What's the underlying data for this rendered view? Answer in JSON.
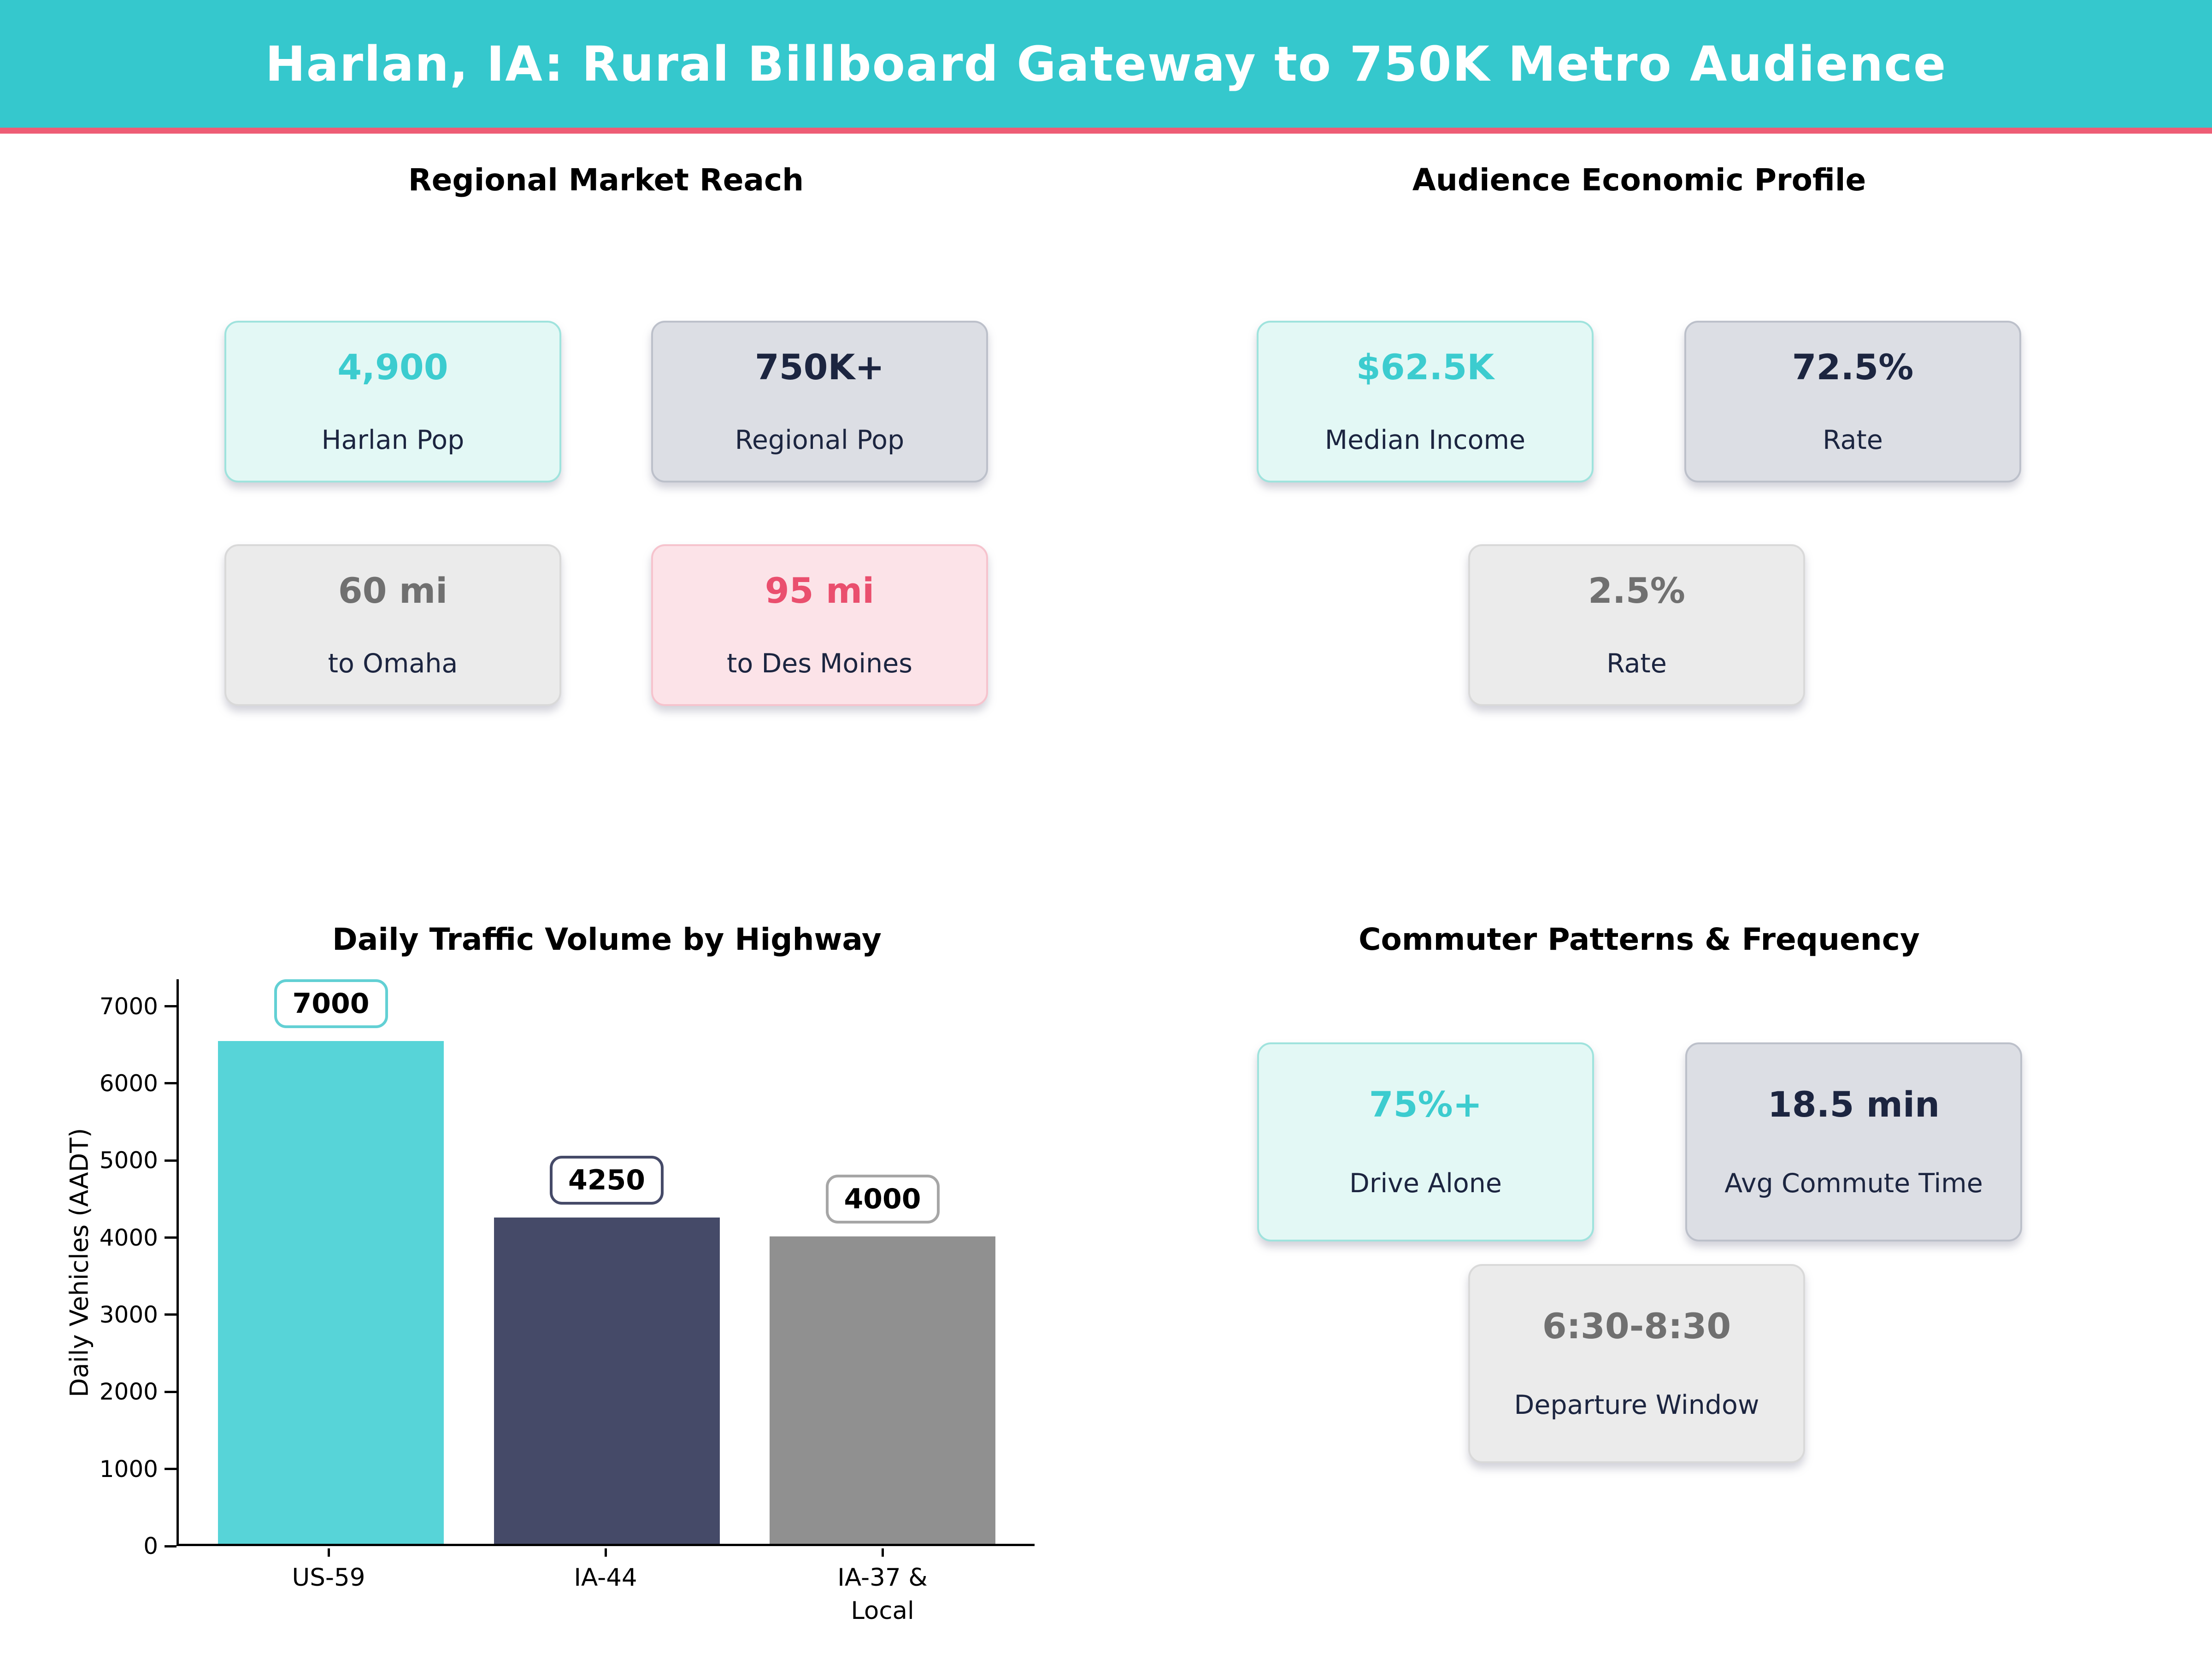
{
  "header": {
    "title": "Harlan, IA: Rural Billboard Gateway to 750K Metro Audience",
    "bg_color": "#35c8cd",
    "underline_color": "#ee5d75"
  },
  "quadrants": {
    "regional": {
      "title": "Regional Market Reach",
      "cards": [
        {
          "value": "4,900",
          "label": "Harlan Pop",
          "style": "mint"
        },
        {
          "value": "750K+",
          "label": "Regional Pop",
          "style": "slate"
        },
        {
          "value": "60 mi",
          "label": "to Omaha",
          "style": "gray"
        },
        {
          "value": "95 mi",
          "label": "to Des Moines",
          "style": "pink"
        }
      ]
    },
    "economic": {
      "title": "Audience Economic Profile",
      "cards": [
        {
          "value": "$62.5K",
          "label": "Median Income",
          "style": "mint"
        },
        {
          "value": "72.5%",
          "label": "Rate",
          "style": "slate"
        },
        {
          "value": "2.5%",
          "label": "Rate",
          "style": "gray"
        }
      ]
    },
    "traffic": {
      "title": "Daily Traffic Volume by Highway"
    },
    "commuter": {
      "title": "Commuter Patterns & Frequency",
      "cards": [
        {
          "value": "75%+",
          "label": "Drive Alone",
          "style": "mint"
        },
        {
          "value": "18.5 min",
          "label": "Avg Commute Time",
          "style": "slate"
        },
        {
          "value": "6:30-8:30",
          "label": "Departure Window",
          "style": "gray"
        }
      ]
    }
  },
  "colors": {
    "accent_teal": "#3ccccf",
    "accent_pink": "#ea4f6e",
    "dark_navy": "#1c2540",
    "mid_gray": "#707070"
  },
  "chart_data": {
    "type": "bar",
    "title": "Daily Traffic Volume by Highway",
    "categories": [
      "US-59",
      "IA-44",
      "IA-37 &\nLocal"
    ],
    "values": [
      7000,
      4250,
      4000
    ],
    "value_labels": [
      "7000",
      "4250",
      "4000"
    ],
    "bar_colors": [
      "#57d4d8",
      "#454a68",
      "#909090"
    ],
    "label_border_colors": [
      "#62d0d4",
      "#454a68",
      "#a6a6a6"
    ],
    "xlabel": "",
    "ylabel": "Daily Vehicles (AADT)",
    "ylim": [
      0,
      7350
    ],
    "yticks": [
      0,
      1000,
      2000,
      3000,
      4000,
      5000,
      6000,
      7000
    ],
    "grid": false,
    "legend": "none"
  }
}
